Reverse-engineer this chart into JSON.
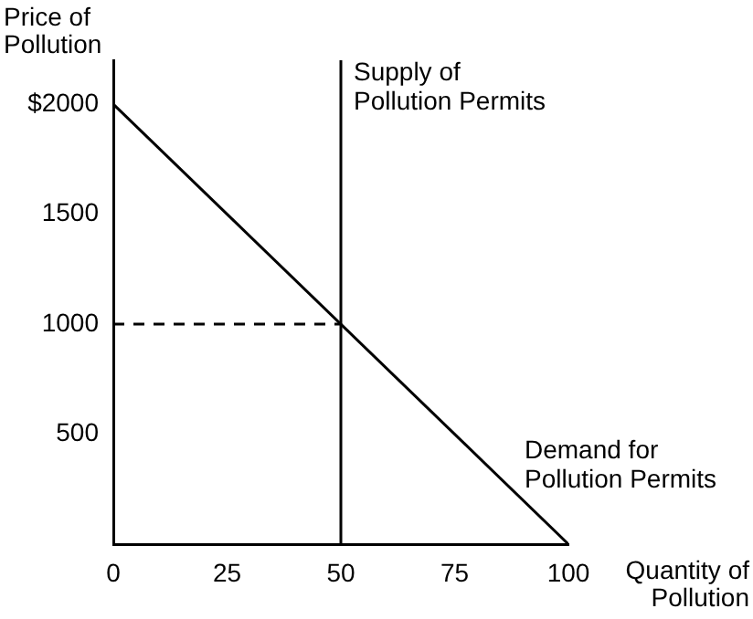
{
  "chart_data": {
    "type": "line",
    "xlabel": "Quantity of Pollution",
    "ylabel": "Price of Pollution",
    "xlim": [
      0,
      100
    ],
    "ylim": [
      0,
      2200
    ],
    "xticks": [
      0,
      25,
      50,
      75,
      100
    ],
    "yticks": [
      500,
      1000,
      1500,
      {
        "value": 2000,
        "label": "$2000"
      }
    ],
    "grid": false,
    "legend": false,
    "marker": "none",
    "series": [
      {
        "name": "Supply of Pollution Permits",
        "color": "#000000",
        "x": [
          50,
          50
        ],
        "values": [
          0,
          2200
        ],
        "line_style": "solid"
      },
      {
        "name": "Demand for Pollution Permits",
        "color": "#000000",
        "x": [
          0,
          100
        ],
        "values": [
          2000,
          0
        ],
        "line_style": "solid"
      },
      {
        "color": "#000000",
        "x": [
          0,
          50
        ],
        "values": [
          1000,
          1000
        ],
        "line_style": "dashed"
      }
    ]
  }
}
